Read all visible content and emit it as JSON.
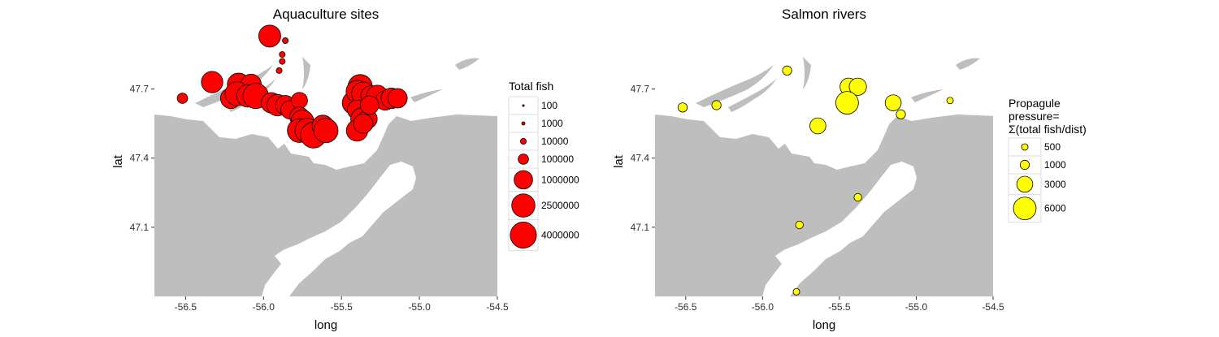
{
  "colors": {
    "land": "#ffffff",
    "water": "#bebebe",
    "aquaculture": "#ff0000",
    "river": "#ffff00",
    "stroke": "#000000"
  },
  "chart_data": [
    {
      "type": "scatter",
      "title": "Aquaculture sites",
      "xlabel": "long",
      "ylabel": "lat",
      "xlim": [
        -56.7,
        -54.5
      ],
      "ylim": [
        46.8,
        47.97
      ],
      "xticks": [
        -56.5,
        -56.0,
        -55.5,
        -55.0,
        -54.5
      ],
      "xtick_labels": [
        "-56.5",
        "-56.0",
        "-55.5",
        "-55.0",
        "-54.5"
      ],
      "yticks": [
        47.1,
        47.4,
        47.7
      ],
      "ytick_labels": [
        "47.1",
        "47.4",
        "47.7"
      ],
      "grid": false,
      "legend": {
        "title": "Total fish",
        "position": "right",
        "entries": [
          {
            "label": "100",
            "value": 100
          },
          {
            "label": "1000",
            "value": 1000
          },
          {
            "label": "10000",
            "value": 10000
          },
          {
            "label": "100000",
            "value": 100000
          },
          {
            "label": "1000000",
            "value": 1000000
          },
          {
            "label": "2500000",
            "value": 2500000
          },
          {
            "label": "4000000",
            "value": 4000000
          }
        ]
      },
      "points": [
        {
          "long": -55.96,
          "lat": 47.93,
          "value": 2000000
        },
        {
          "long": -55.86,
          "lat": 47.91,
          "value": 10000
        },
        {
          "long": -55.88,
          "lat": 47.85,
          "value": 10000
        },
        {
          "long": -55.88,
          "lat": 47.82,
          "value": 10000
        },
        {
          "long": -55.9,
          "lat": 47.78,
          "value": 10000
        },
        {
          "long": -56.52,
          "lat": 47.66,
          "value": 100000
        },
        {
          "long": -56.33,
          "lat": 47.73,
          "value": 1800000
        },
        {
          "long": -56.16,
          "lat": 47.72,
          "value": 2200000
        },
        {
          "long": -56.08,
          "lat": 47.72,
          "value": 1500000
        },
        {
          "long": -56.21,
          "lat": 47.66,
          "value": 1500000
        },
        {
          "long": -56.17,
          "lat": 47.68,
          "value": 2800000
        },
        {
          "long": -56.1,
          "lat": 47.67,
          "value": 2200000
        },
        {
          "long": -56.05,
          "lat": 47.67,
          "value": 3500000
        },
        {
          "long": -55.95,
          "lat": 47.64,
          "value": 1500000
        },
        {
          "long": -55.91,
          "lat": 47.63,
          "value": 1800000
        },
        {
          "long": -55.86,
          "lat": 47.63,
          "value": 1200000
        },
        {
          "long": -55.83,
          "lat": 47.61,
          "value": 1000000
        },
        {
          "long": -55.77,
          "lat": 47.65,
          "value": 600000
        },
        {
          "long": -55.77,
          "lat": 47.58,
          "value": 1200000
        },
        {
          "long": -55.75,
          "lat": 47.56,
          "value": 2200000
        },
        {
          "long": -55.77,
          "lat": 47.52,
          "value": 2800000
        },
        {
          "long": -55.72,
          "lat": 47.52,
          "value": 3000000
        },
        {
          "long": -55.68,
          "lat": 47.5,
          "value": 3800000
        },
        {
          "long": -55.62,
          "lat": 47.54,
          "value": 1800000
        },
        {
          "long": -55.6,
          "lat": 47.52,
          "value": 3000000
        },
        {
          "long": -55.42,
          "lat": 47.64,
          "value": 2500000
        },
        {
          "long": -55.38,
          "lat": 47.71,
          "value": 3000000
        },
        {
          "long": -55.4,
          "lat": 47.69,
          "value": 2000000
        },
        {
          "long": -55.36,
          "lat": 47.68,
          "value": 2500000
        },
        {
          "long": -55.31,
          "lat": 47.67,
          "value": 1500000
        },
        {
          "long": -55.27,
          "lat": 47.67,
          "value": 1800000
        },
        {
          "long": -55.22,
          "lat": 47.65,
          "value": 1200000
        },
        {
          "long": -55.18,
          "lat": 47.66,
          "value": 1500000
        },
        {
          "long": -55.14,
          "lat": 47.66,
          "value": 1200000
        },
        {
          "long": -55.4,
          "lat": 47.61,
          "value": 1200000
        },
        {
          "long": -55.37,
          "lat": 47.57,
          "value": 2000000
        },
        {
          "long": -55.33,
          "lat": 47.57,
          "value": 1000000
        },
        {
          "long": -55.4,
          "lat": 47.52,
          "value": 1800000
        },
        {
          "long": -55.36,
          "lat": 47.55,
          "value": 1200000
        },
        {
          "long": -55.32,
          "lat": 47.63,
          "value": 1000000
        }
      ]
    },
    {
      "type": "scatter",
      "title": "Salmon rivers",
      "xlabel": "long",
      "ylabel": "lat",
      "xlim": [
        -56.7,
        -54.5
      ],
      "ylim": [
        46.8,
        47.97
      ],
      "xticks": [
        -56.5,
        -56.0,
        -55.5,
        -55.0,
        -54.5
      ],
      "xtick_labels": [
        "-56.5",
        "-56.0",
        "-55.5",
        "-55.0",
        "-54.5"
      ],
      "yticks": [
        47.1,
        47.4,
        47.7
      ],
      "ytick_labels": [
        "47.1",
        "47.4",
        "47.7"
      ],
      "grid": false,
      "legend": {
        "title_lines": [
          "Propagule",
          "pressure=",
          "Σ(total fish/dist)"
        ],
        "position": "right",
        "entries": [
          {
            "label": "500",
            "value": 500
          },
          {
            "label": "1000",
            "value": 1000
          },
          {
            "label": "3000",
            "value": 3000
          },
          {
            "label": "6000",
            "value": 6000
          }
        ]
      },
      "points": [
        {
          "long": -56.52,
          "lat": 47.62,
          "value": 1000
        },
        {
          "long": -56.3,
          "lat": 47.63,
          "value": 1000
        },
        {
          "long": -55.84,
          "lat": 47.78,
          "value": 1000
        },
        {
          "long": -55.44,
          "lat": 47.71,
          "value": 3500
        },
        {
          "long": -55.38,
          "lat": 47.71,
          "value": 3500
        },
        {
          "long": -55.45,
          "lat": 47.64,
          "value": 6000
        },
        {
          "long": -55.64,
          "lat": 47.54,
          "value": 3000
        },
        {
          "long": -55.15,
          "lat": 47.64,
          "value": 3000
        },
        {
          "long": -55.1,
          "lat": 47.59,
          "value": 1000
        },
        {
          "long": -54.78,
          "lat": 47.65,
          "value": 500
        },
        {
          "long": -55.38,
          "lat": 47.23,
          "value": 700
        },
        {
          "long": -55.76,
          "lat": 47.11,
          "value": 700
        },
        {
          "long": -55.78,
          "lat": 46.82,
          "value": 500
        }
      ]
    }
  ]
}
